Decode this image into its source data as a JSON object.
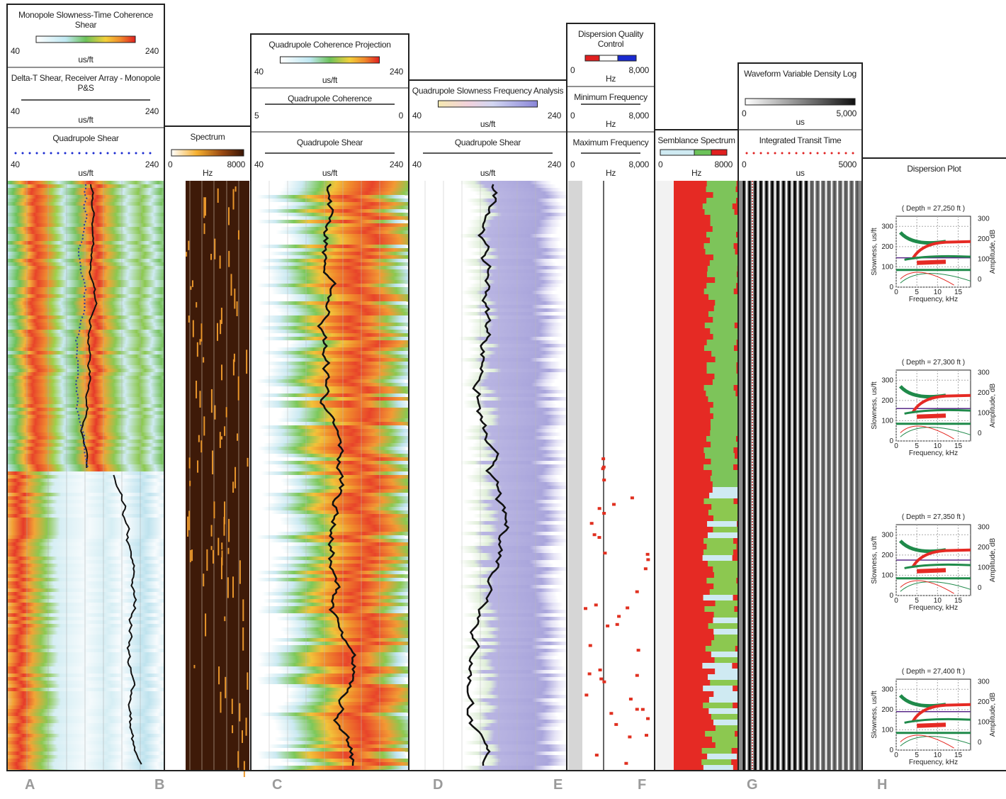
{
  "tracks": [
    {
      "sections": [
        {
          "title": "Monopole Slowness-Time Coherence Shear",
          "left": "40",
          "unit": "us/ft",
          "right": "240"
        },
        {
          "title": "Delta-T Shear, Receiver Array - Monopole P&S",
          "left": "40",
          "unit": "us/ft",
          "right": "240"
        },
        {
          "title": "Quadrupole Shear",
          "left": "40",
          "unit": "us/ft",
          "right": "240"
        }
      ]
    },
    {
      "sections": [
        {
          "title": "Spectrum",
          "left": "0",
          "unit": "Hz",
          "right": "8000"
        }
      ]
    },
    {
      "sections": [
        {
          "title": "Quadrupole Coherence Projection",
          "left": "40",
          "unit": "us/ft",
          "right": "240"
        },
        {
          "title": "Quadrupole Coherence",
          "left": "5",
          "right": "0"
        },
        {
          "title": "Quadrupole Shear",
          "left": "40",
          "unit": "us/ft",
          "right": "240"
        }
      ]
    },
    {
      "sections": [
        {
          "title": "Quadrupole Slowness Frequency Analysis",
          "left": "40",
          "unit": "us/ft",
          "right": "240"
        },
        {
          "title": "Quadrupole Shear",
          "left": "40",
          "unit": "us/ft",
          "right": "240"
        }
      ]
    },
    {
      "sections": [
        {
          "title": "Dispersion Quality Control",
          "left": "0",
          "unit": "Hz",
          "right": "8,000"
        },
        {
          "title": "Minimum Frequency",
          "left": "0",
          "unit": "Hz",
          "right": "8,000"
        },
        {
          "title": "Maximum Frequency",
          "left": "0",
          "unit": "Hz",
          "right": "8,000"
        }
      ]
    },
    {
      "sections": [
        {
          "title": "Semblance Spectrum",
          "left": "0",
          "unit": "Hz",
          "right": "8000"
        }
      ]
    },
    {
      "sections": [
        {
          "title": "Waveform Variable Density Log",
          "left": "0",
          "unit": "us",
          "right": "5,000"
        },
        {
          "title": "Integrated Transit Time",
          "left": "0",
          "unit": "us",
          "right": "5000"
        }
      ]
    },
    {
      "sections": [
        {
          "title": "Dispersion Plot"
        }
      ]
    }
  ],
  "letters": [
    "A",
    "B",
    "C",
    "D",
    "E",
    "F",
    "G",
    "H"
  ],
  "dispersion": {
    "x_label": "Frequency, kHz",
    "y_label": "Slowness, us/ft",
    "y2_label": "Amplitude, dB",
    "xticks": [
      "0",
      "5",
      "10",
      "15"
    ],
    "yticks": [
      "0",
      "100",
      "200",
      "300"
    ],
    "y2ticks": [
      "0",
      "100",
      "200",
      "300"
    ],
    "panels": [
      "( Depth = 27,250 ft )",
      "( Depth = 27,300 ft )",
      "( Depth = 27,350 ft )",
      "( Depth = 27,400 ft )"
    ]
  }
}
